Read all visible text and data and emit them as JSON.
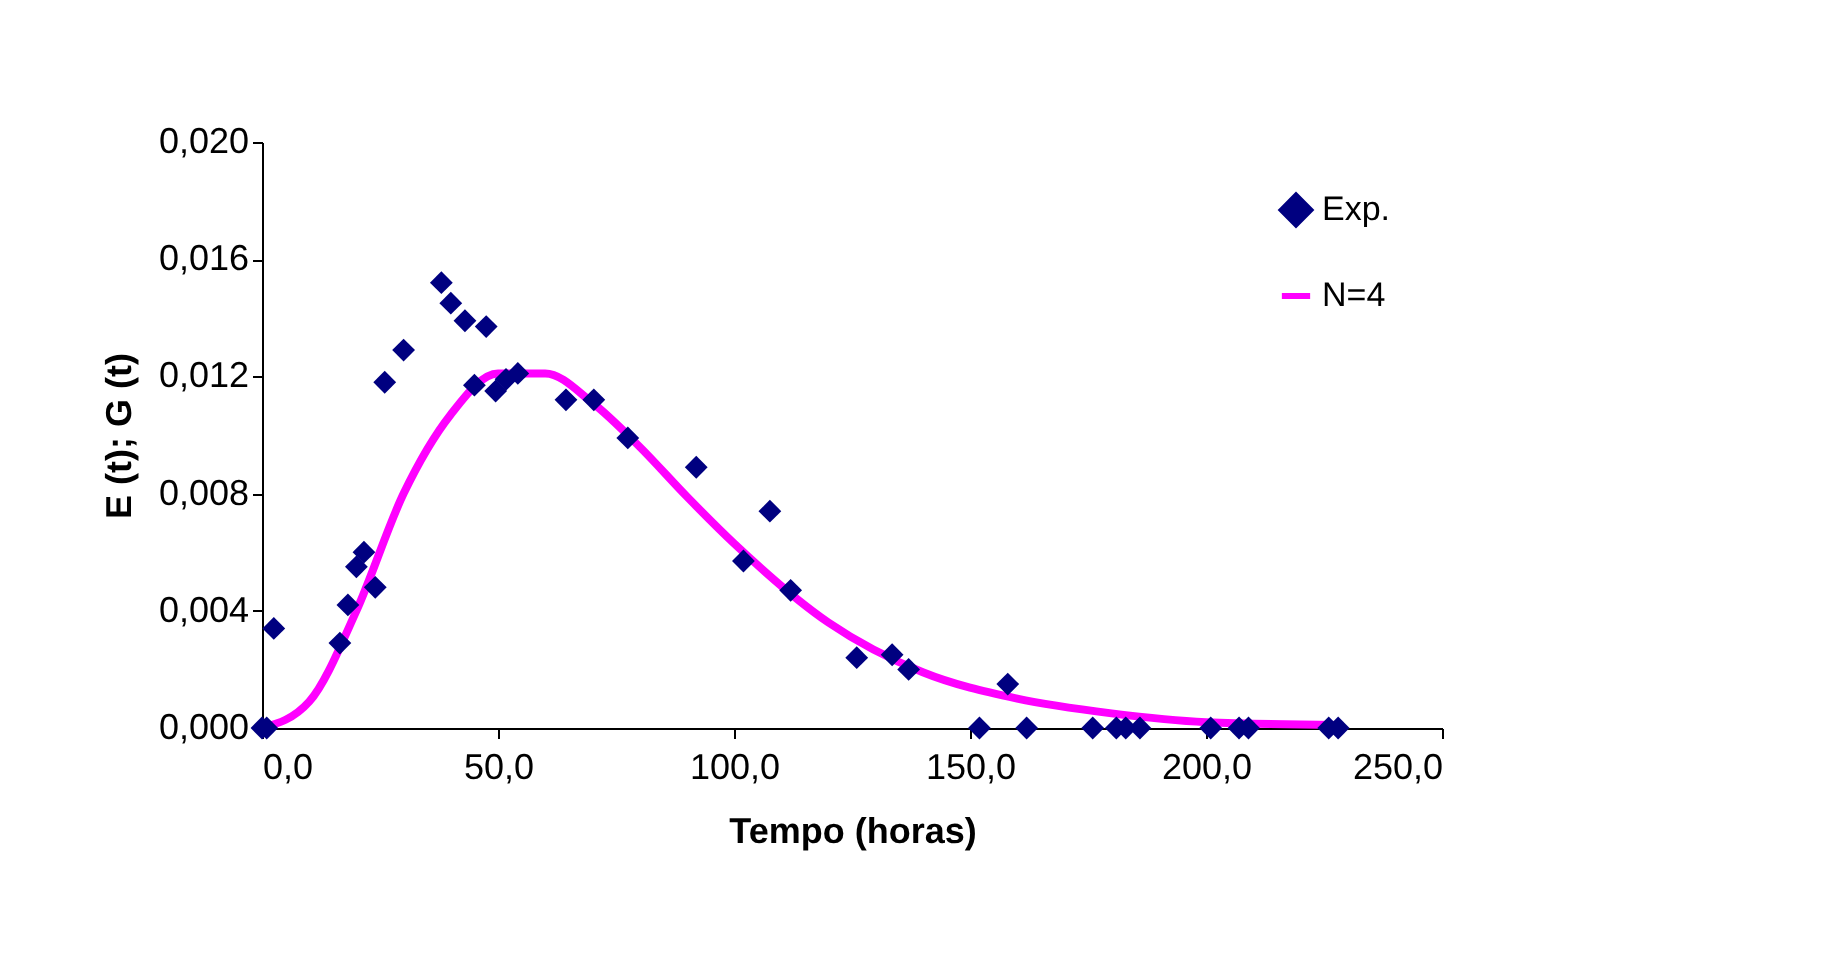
{
  "chart_data": {
    "type": "scatter",
    "xlabel": "Tempo (horas)",
    "ylabel": "E (t); G (t)",
    "xlim": [
      0,
      250
    ],
    "xticks": [
      {
        "value": 0,
        "label": "0,0"
      },
      {
        "value": 50,
        "label": "50,0"
      },
      {
        "value": 100,
        "label": "100,0"
      },
      {
        "value": 150,
        "label": "150,0"
      },
      {
        "value": 200,
        "label": "200,0"
      },
      {
        "value": 250,
        "label": "250,0"
      }
    ],
    "ylim": [
      0,
      0.02
    ],
    "yticks": [
      {
        "value": 0,
        "label": "0,000"
      },
      {
        "value": 0.004,
        "label": "0,004"
      },
      {
        "value": 0.008,
        "label": "0,008"
      },
      {
        "value": 0.012,
        "label": "0,012"
      },
      {
        "value": 0.016,
        "label": "0,016"
      },
      {
        "value": 0.02,
        "label": "0,020"
      }
    ],
    "grid": false,
    "legend": "top right",
    "series": [
      {
        "name": "Exp.",
        "marker": "diamond",
        "color": "#000080",
        "x": [
          0,
          1,
          2.5,
          16.5,
          18.2,
          20,
          21.6,
          24,
          26,
          30,
          38,
          40,
          43,
          45,
          47.5,
          49.5,
          51.7,
          54.2,
          64.4,
          70.3,
          77.5,
          92,
          102,
          107.6,
          112,
          126,
          133.5,
          137,
          152,
          158,
          162,
          176,
          181,
          183,
          186,
          201,
          207,
          209,
          226,
          228
        ],
        "values": [
          0,
          0,
          0.0034,
          0.0029,
          0.0042,
          0.0055,
          0.006,
          0.0048,
          0.0118,
          0.0129,
          0.0152,
          0.0145,
          0.0139,
          0.0117,
          0.0137,
          0.0115,
          0.0119,
          0.0121,
          0.0112,
          0.0112,
          0.0099,
          0.0089,
          0.0057,
          0.0074,
          0.0047,
          0.0024,
          0.0025,
          0.002,
          0,
          0.0015,
          0,
          0,
          0,
          0,
          0,
          0,
          0,
          0,
          0,
          0
        ]
      },
      {
        "name": "N=4",
        "type": "line",
        "line_style": "solid",
        "color": "#ff00ff",
        "x": [
          0,
          10,
          20,
          30,
          40,
          50,
          60,
          70,
          80,
          90,
          100,
          120,
          140,
          160,
          180,
          200,
          228
        ],
        "values": [
          0,
          0.0009,
          0.004,
          0.008,
          0.0107,
          0.0121,
          0.0121,
          0.0111,
          0.0096,
          0.0079,
          0.0063,
          0.0036,
          0.0019,
          0.001,
          0.0005,
          0.0002,
          0.0001
        ]
      }
    ]
  }
}
